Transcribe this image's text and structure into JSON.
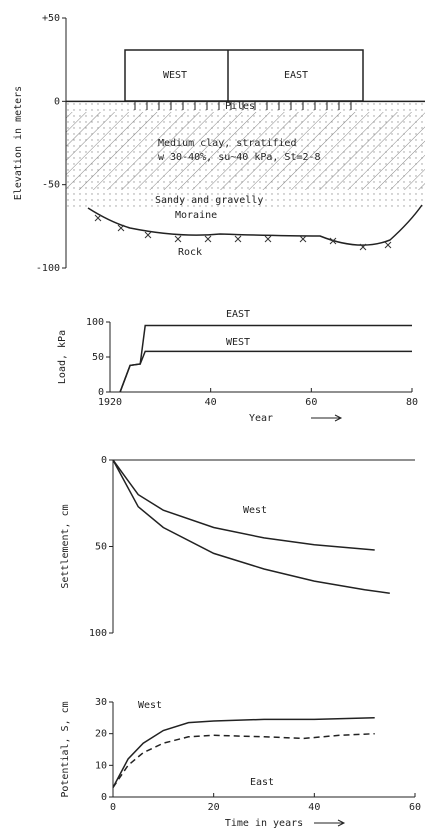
{
  "chart_data": [
    {
      "type": "diagram",
      "ylabel": "Elevation in meters",
      "ylim": [
        -100,
        50
      ],
      "yticks": [
        {
          "value": 50,
          "label": "+50"
        },
        0,
        -50,
        -100
      ],
      "annotations": [
        "WEST",
        "EAST",
        "Piles",
        "Medium clay, stratified",
        "w 30-40%, su~40 kPa, St=2-8",
        "Sandy and gravelly",
        "Moraine",
        "Rock"
      ]
    },
    {
      "type": "line",
      "ylabel": "Load, kPa",
      "xlabel": "Year",
      "xlim": [
        1920,
        1980
      ],
      "ylim": [
        0,
        100
      ],
      "xticks": [
        1920,
        {
          "value": 1940,
          "label": "40"
        },
        {
          "value": 1960,
          "label": "60"
        },
        {
          "value": 1980,
          "label": "80"
        }
      ],
      "yticks": [
        0,
        50,
        100
      ],
      "series": [
        {
          "name": "EAST",
          "color": "#222222",
          "dashed": false,
          "x": [
            1922,
            1924,
            1926,
            1927,
            1980
          ],
          "values": [
            0,
            38,
            40,
            95,
            95
          ]
        },
        {
          "name": "WEST",
          "color": "#222222",
          "dashed": false,
          "x": [
            1922,
            1924,
            1926,
            1927,
            1980
          ],
          "values": [
            0,
            38,
            40,
            58,
            58
          ]
        }
      ]
    },
    {
      "type": "line",
      "ylabel": "Settlement, cm",
      "xlim": [
        0,
        60
      ],
      "ylim": [
        100,
        0
      ],
      "yticks": [
        0,
        50,
        100
      ],
      "series": [
        {
          "name": "West",
          "color": "#222222",
          "dashed": false,
          "x": [
            0,
            5,
            10,
            20,
            30,
            40,
            52
          ],
          "values": [
            0,
            20,
            29,
            39,
            45,
            49,
            52
          ]
        },
        {
          "color": "#222222",
          "dashed": false,
          "x": [
            0,
            5,
            10,
            20,
            30,
            40,
            50,
            55
          ],
          "values": [
            0,
            27,
            39,
            54,
            63,
            70,
            75,
            77
          ]
        }
      ]
    },
    {
      "type": "line",
      "ylabel": "Potential, S, cm",
      "xlabel": "Time in years",
      "xlim": [
        0,
        60
      ],
      "ylim": [
        0,
        30
      ],
      "xticks": [
        0,
        20,
        40,
        60
      ],
      "yticks": [
        0,
        10,
        20,
        30
      ],
      "series": [
        {
          "name": "West",
          "color": "#222222",
          "dashed": false,
          "x": [
            0,
            3,
            6,
            10,
            15,
            20,
            30,
            40,
            52
          ],
          "values": [
            3,
            12,
            17,
            21,
            23.5,
            24,
            24.5,
            24.5,
            25
          ]
        },
        {
          "name": "East",
          "color": "#222222",
          "dashed": true,
          "x": [
            0,
            3,
            6,
            10,
            15,
            20,
            30,
            38,
            45,
            52
          ],
          "values": [
            3,
            10,
            14,
            17,
            19,
            19.5,
            19,
            18.5,
            19.5,
            20
          ]
        }
      ]
    }
  ]
}
